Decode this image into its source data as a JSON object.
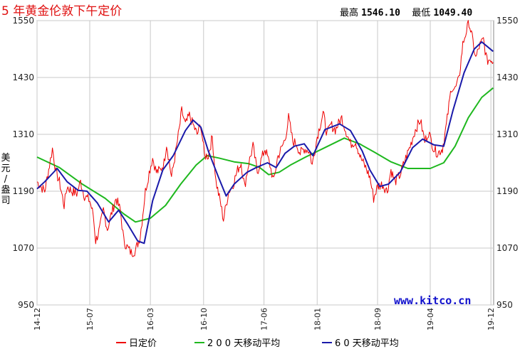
{
  "title": "5 年黄金伦敦下午定价",
  "stats": {
    "high_label": "最高",
    "high_value": "1546.10",
    "low_label": "最低",
    "low_value": "1049.40"
  },
  "watermark": "www.kitco.cn",
  "colors": {
    "daily": "#ee0000",
    "ma200": "#1fb81f",
    "ma60": "#1a1aaa",
    "grid": "#c8c8c8",
    "title": "#e01010"
  },
  "chart_data": {
    "type": "line",
    "title": "5 年黄金伦敦下午定价",
    "ylabel": "美元/盎司",
    "xlabel": "",
    "ylim": [
      950,
      1550
    ],
    "yticks": [
      950,
      1070,
      1190,
      1310,
      1430,
      1550
    ],
    "xlim": [
      "2014-12",
      "2019-12"
    ],
    "x_tick_labels": [
      "14-12",
      "15-07",
      "16-03",
      "16-10",
      "17-06",
      "18-01",
      "18-09",
      "19-04",
      "19-12"
    ],
    "x_tick_dates": [
      "2014-12",
      "2015-07",
      "2016-03",
      "2016-10",
      "2017-06",
      "2018-01",
      "2018-09",
      "2019-04",
      "2019-12"
    ],
    "grid": true,
    "legend_position": "bottom",
    "series": [
      {
        "name": "日定价",
        "key": "daily",
        "points": [
          [
            "2014-12-01",
            1210
          ],
          [
            "2015-01-01",
            1190
          ],
          [
            "2015-01-20",
            1245
          ],
          [
            "2015-02-01",
            1280
          ],
          [
            "2015-02-15",
            1230
          ],
          [
            "2015-03-01",
            1210
          ],
          [
            "2015-03-20",
            1160
          ],
          [
            "2015-04-01",
            1200
          ],
          [
            "2015-04-20",
            1190
          ],
          [
            "2015-05-10",
            1185
          ],
          [
            "2015-05-25",
            1210
          ],
          [
            "2015-06-10",
            1180
          ],
          [
            "2015-07-01",
            1170
          ],
          [
            "2015-07-15",
            1140
          ],
          [
            "2015-07-25",
            1085
          ],
          [
            "2015-08-10",
            1110
          ],
          [
            "2015-08-25",
            1150
          ],
          [
            "2015-09-10",
            1110
          ],
          [
            "2015-09-25",
            1140
          ],
          [
            "2015-10-15",
            1175
          ],
          [
            "2015-11-01",
            1150
          ],
          [
            "2015-11-15",
            1085
          ],
          [
            "2015-12-01",
            1070
          ],
          [
            "2015-12-15",
            1060
          ],
          [
            "2016-01-01",
            1065
          ],
          [
            "2016-01-20",
            1095
          ],
          [
            "2016-02-10",
            1190
          ],
          [
            "2016-02-25",
            1230
          ],
          [
            "2016-03-10",
            1260
          ],
          [
            "2016-03-25",
            1230
          ],
          [
            "2016-04-10",
            1235
          ],
          [
            "2016-04-25",
            1250
          ],
          [
            "2016-05-05",
            1290
          ],
          [
            "2016-05-25",
            1220
          ],
          [
            "2016-06-10",
            1270
          ],
          [
            "2016-06-25",
            1320
          ],
          [
            "2016-07-05",
            1360
          ],
          [
            "2016-07-20",
            1330
          ],
          [
            "2016-08-05",
            1350
          ],
          [
            "2016-08-20",
            1330
          ],
          [
            "2016-09-05",
            1310
          ],
          [
            "2016-09-20",
            1330
          ],
          [
            "2016-10-05",
            1265
          ],
          [
            "2016-10-20",
            1265
          ],
          [
            "2016-11-05",
            1305
          ],
          [
            "2016-11-20",
            1210
          ],
          [
            "2016-12-10",
            1160
          ],
          [
            "2016-12-20",
            1130
          ],
          [
            "2017-01-10",
            1190
          ],
          [
            "2017-01-25",
            1200
          ],
          [
            "2017-02-15",
            1235
          ],
          [
            "2017-03-01",
            1250
          ],
          [
            "2017-03-15",
            1200
          ],
          [
            "2017-04-01",
            1250
          ],
          [
            "2017-04-18",
            1285
          ],
          [
            "2017-05-05",
            1230
          ],
          [
            "2017-05-20",
            1255
          ],
          [
            "2017-06-05",
            1280
          ],
          [
            "2017-06-25",
            1245
          ],
          [
            "2017-07-10",
            1210
          ],
          [
            "2017-07-25",
            1260
          ],
          [
            "2017-08-10",
            1280
          ],
          [
            "2017-08-25",
            1300
          ],
          [
            "2017-09-08",
            1345
          ],
          [
            "2017-09-25",
            1295
          ],
          [
            "2017-10-10",
            1290
          ],
          [
            "2017-10-25",
            1270
          ],
          [
            "2017-11-10",
            1280
          ],
          [
            "2017-12-01",
            1275
          ],
          [
            "2017-12-12",
            1245
          ],
          [
            "2018-01-01",
            1305
          ],
          [
            "2018-01-25",
            1355
          ],
          [
            "2018-02-10",
            1310
          ],
          [
            "2018-02-25",
            1330
          ],
          [
            "2018-03-15",
            1320
          ],
          [
            "2018-04-10",
            1345
          ],
          [
            "2018-04-25",
            1320
          ],
          [
            "2018-05-15",
            1290
          ],
          [
            "2018-06-05",
            1295
          ],
          [
            "2018-06-25",
            1260
          ],
          [
            "2018-07-15",
            1240
          ],
          [
            "2018-08-01",
            1220
          ],
          [
            "2018-08-16",
            1175
          ],
          [
            "2018-09-01",
            1200
          ],
          [
            "2018-09-20",
            1205
          ],
          [
            "2018-10-10",
            1190
          ],
          [
            "2018-10-25",
            1235
          ],
          [
            "2018-11-10",
            1210
          ],
          [
            "2018-12-01",
            1225
          ],
          [
            "2018-12-20",
            1255
          ],
          [
            "2019-01-10",
            1285
          ],
          [
            "2019-01-31",
            1320
          ],
          [
            "2019-02-20",
            1340
          ],
          [
            "2019-03-10",
            1295
          ],
          [
            "2019-03-25",
            1315
          ],
          [
            "2019-04-15",
            1280
          ],
          [
            "2019-05-01",
            1270
          ],
          [
            "2019-05-20",
            1280
          ],
          [
            "2019-06-05",
            1330
          ],
          [
            "2019-06-25",
            1410
          ],
          [
            "2019-07-10",
            1405
          ],
          [
            "2019-07-25",
            1425
          ],
          [
            "2019-08-10",
            1500
          ],
          [
            "2019-08-25",
            1530
          ],
          [
            "2019-09-04",
            1546
          ],
          [
            "2019-09-20",
            1505
          ],
          [
            "2019-10-01",
            1470
          ],
          [
            "2019-10-15",
            1495
          ],
          [
            "2019-11-01",
            1510
          ],
          [
            "2019-11-15",
            1465
          ],
          [
            "2019-12-01",
            1470
          ],
          [
            "2019-12-10",
            1462
          ]
        ]
      },
      {
        "name": "2 0 0 天移动平均",
        "key": "ma200",
        "points": [
          [
            "2014-12-01",
            1262
          ],
          [
            "2015-03-01",
            1240
          ],
          [
            "2015-06-01",
            1205
          ],
          [
            "2015-09-01",
            1175
          ],
          [
            "2015-11-15",
            1142
          ],
          [
            "2016-01-01",
            1125
          ],
          [
            "2016-03-01",
            1133
          ],
          [
            "2016-05-01",
            1160
          ],
          [
            "2016-07-01",
            1205
          ],
          [
            "2016-09-01",
            1245
          ],
          [
            "2016-10-15",
            1265
          ],
          [
            "2016-12-01",
            1260
          ],
          [
            "2017-02-01",
            1252
          ],
          [
            "2017-04-01",
            1248
          ],
          [
            "2017-05-15",
            1240
          ],
          [
            "2017-06-20",
            1225
          ],
          [
            "2017-08-01",
            1230
          ],
          [
            "2017-09-15",
            1245
          ],
          [
            "2017-11-15",
            1262
          ],
          [
            "2018-02-01",
            1282
          ],
          [
            "2018-04-20",
            1302
          ],
          [
            "2018-06-20",
            1290
          ],
          [
            "2018-08-20",
            1272
          ],
          [
            "2018-10-25",
            1252
          ],
          [
            "2019-01-01",
            1238
          ],
          [
            "2019-04-01",
            1238
          ],
          [
            "2019-05-25",
            1250
          ],
          [
            "2019-07-10",
            1285
          ],
          [
            "2019-09-01",
            1345
          ],
          [
            "2019-10-25",
            1388
          ],
          [
            "2019-12-10",
            1408
          ]
        ]
      },
      {
        "name": "6 0 天移动平均",
        "key": "ma60",
        "points": [
          [
            "2014-12-01",
            1195
          ],
          [
            "2015-01-01",
            1210
          ],
          [
            "2015-02-20",
            1238
          ],
          [
            "2015-04-01",
            1210
          ],
          [
            "2015-05-15",
            1192
          ],
          [
            "2015-06-20",
            1190
          ],
          [
            "2015-08-01",
            1165
          ],
          [
            "2015-09-15",
            1125
          ],
          [
            "2015-10-25",
            1150
          ],
          [
            "2015-12-01",
            1120
          ],
          [
            "2016-01-10",
            1085
          ],
          [
            "2016-02-05",
            1080
          ],
          [
            "2016-03-10",
            1170
          ],
          [
            "2016-04-20",
            1235
          ],
          [
            "2016-06-01",
            1265
          ],
          [
            "2016-07-20",
            1318
          ],
          [
            "2016-08-20",
            1340
          ],
          [
            "2016-09-20",
            1325
          ],
          [
            "2016-10-20",
            1275
          ],
          [
            "2016-12-01",
            1218
          ],
          [
            "2016-12-31",
            1180
          ],
          [
            "2017-02-01",
            1205
          ],
          [
            "2017-03-25",
            1230
          ],
          [
            "2017-05-01",
            1240
          ],
          [
            "2017-06-15",
            1250
          ],
          [
            "2017-07-20",
            1240
          ],
          [
            "2017-08-25",
            1270
          ],
          [
            "2017-10-01",
            1285
          ],
          [
            "2017-11-10",
            1290
          ],
          [
            "2017-12-15",
            1265
          ],
          [
            "2018-02-01",
            1320
          ],
          [
            "2018-04-01",
            1332
          ],
          [
            "2018-05-15",
            1318
          ],
          [
            "2018-07-01",
            1275
          ],
          [
            "2018-08-01",
            1235
          ],
          [
            "2018-09-10",
            1200
          ],
          [
            "2018-10-15",
            1205
          ],
          [
            "2018-12-01",
            1230
          ],
          [
            "2019-01-20",
            1282
          ],
          [
            "2019-03-01",
            1300
          ],
          [
            "2019-04-15",
            1288
          ],
          [
            "2019-05-25",
            1285
          ],
          [
            "2019-07-01",
            1360
          ],
          [
            "2019-08-15",
            1440
          ],
          [
            "2019-09-25",
            1490
          ],
          [
            "2019-10-25",
            1505
          ],
          [
            "2019-12-10",
            1485
          ]
        ]
      }
    ]
  },
  "legend": {
    "daily": "日定价",
    "ma200": "2 0 0 天移动平均",
    "ma60": "6 0 天移动平均"
  }
}
